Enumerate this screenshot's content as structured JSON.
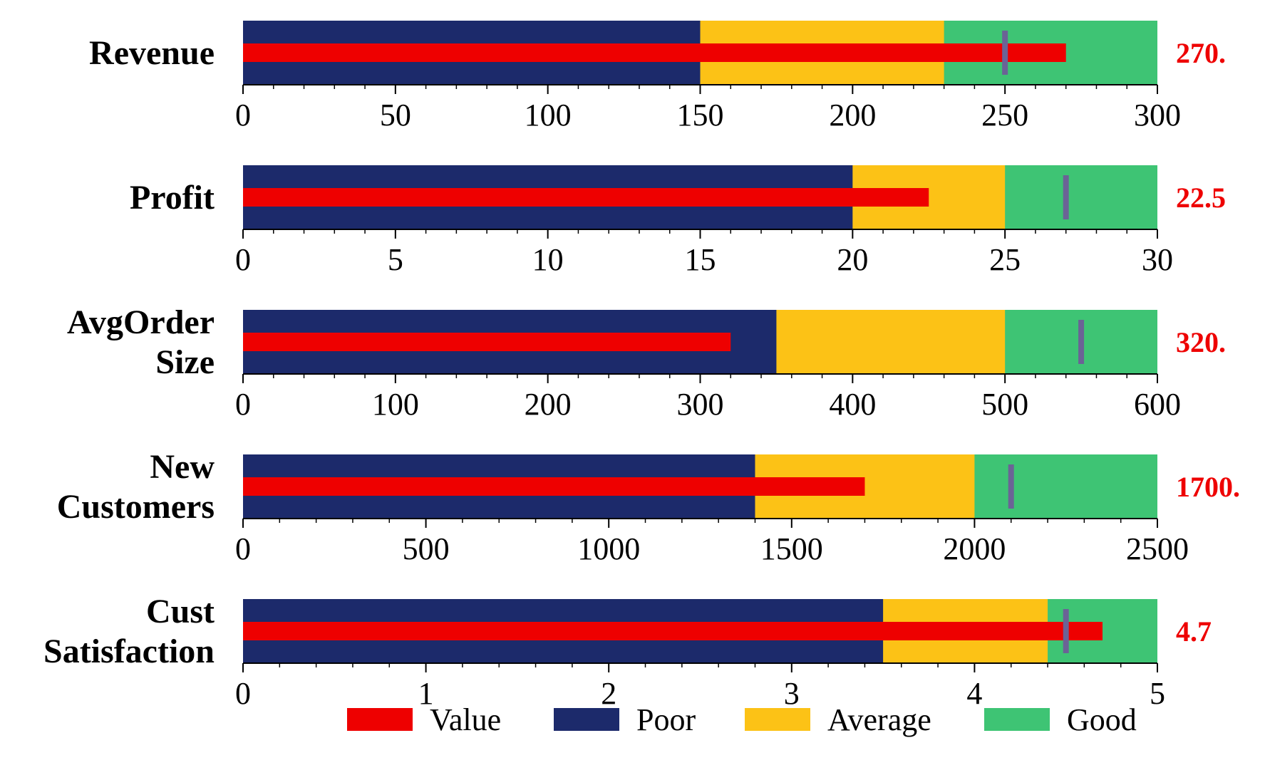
{
  "chart_data": {
    "type": "bullet",
    "colors": {
      "value": "#EE0000",
      "poor": "#1C2A6B",
      "average": "#FCC216",
      "good": "#3EC474",
      "target": "#6B6396",
      "value_text": "#EE0000"
    },
    "legend": {
      "position": "bottom",
      "items": [
        {
          "key": "value",
          "label": "Value"
        },
        {
          "key": "poor",
          "label": "Poor"
        },
        {
          "key": "average",
          "label": "Average"
        },
        {
          "key": "good",
          "label": "Good"
        }
      ]
    },
    "bullets": [
      {
        "label_lines": [
          "Revenue"
        ],
        "value": 270,
        "value_text": "270.",
        "target": 250,
        "ranges": {
          "poor": 150,
          "average": 230,
          "good": 300
        },
        "xlim": [
          0,
          300
        ],
        "ticks": [
          0,
          50,
          100,
          150,
          200,
          250,
          300
        ],
        "tick_labels": [
          "0",
          "50",
          "100",
          "150",
          "200",
          "250",
          "300"
        ],
        "minor_step": 10
      },
      {
        "label_lines": [
          "Profit"
        ],
        "value": 22.5,
        "value_text": "22.5",
        "target": 27,
        "ranges": {
          "poor": 20,
          "average": 25,
          "good": 30
        },
        "xlim": [
          0,
          30
        ],
        "ticks": [
          0,
          5,
          10,
          15,
          20,
          25,
          30
        ],
        "tick_labels": [
          "0",
          "5",
          "10",
          "15",
          "20",
          "25",
          "30"
        ],
        "minor_step": 1
      },
      {
        "label_lines": [
          "AvgOrder",
          "Size"
        ],
        "value": 320,
        "value_text": "320.",
        "target": 550,
        "ranges": {
          "poor": 350,
          "average": 500,
          "good": 600
        },
        "xlim": [
          0,
          600
        ],
        "ticks": [
          0,
          100,
          200,
          300,
          400,
          500,
          600
        ],
        "tick_labels": [
          "0",
          "100",
          "200",
          "300",
          "400",
          "500",
          "600"
        ],
        "minor_step": 20
      },
      {
        "label_lines": [
          "New",
          "Customers"
        ],
        "value": 1700,
        "value_text": "1700.",
        "target": 2100,
        "ranges": {
          "poor": 1400,
          "average": 2000,
          "good": 2500
        },
        "xlim": [
          0,
          2500
        ],
        "ticks": [
          0,
          500,
          1000,
          1500,
          2000,
          2500
        ],
        "tick_labels": [
          "0",
          "500",
          "1000",
          "1500",
          "2000",
          "2500"
        ],
        "minor_step": 100
      },
      {
        "label_lines": [
          "Cust",
          "Satisfaction"
        ],
        "value": 4.7,
        "value_text": "4.7",
        "target": 4.5,
        "ranges": {
          "poor": 3.5,
          "average": 4.4,
          "good": 5
        },
        "xlim": [
          0,
          5
        ],
        "ticks": [
          0,
          1,
          2,
          3,
          4,
          5
        ],
        "tick_labels": [
          "0",
          "1",
          "2",
          "3",
          "4",
          "5"
        ],
        "minor_step": 0.2
      }
    ]
  }
}
